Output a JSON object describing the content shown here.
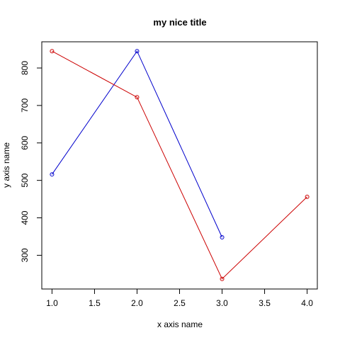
{
  "chart_data": {
    "type": "line",
    "title": "my nice title",
    "xlabel": "x axis name",
    "ylabel": "y axis name",
    "xlim": [
      0.88,
      4.12
    ],
    "ylim": [
      210,
      870
    ],
    "x_ticks": [
      1.0,
      1.5,
      2.0,
      2.5,
      3.0,
      3.5,
      4.0
    ],
    "x_tick_labels": [
      "1.0",
      "1.5",
      "2.0",
      "2.5",
      "3.0",
      "3.5",
      "4.0"
    ],
    "y_ticks": [
      300,
      400,
      500,
      600,
      700,
      800
    ],
    "y_tick_labels": [
      "300",
      "400",
      "500",
      "600",
      "700",
      "800"
    ],
    "grid": false,
    "series": [
      {
        "color": "#0000cc",
        "marker": "open-circle",
        "x": [
          1,
          2,
          3
        ],
        "y": [
          516,
          845,
          348
        ]
      },
      {
        "color": "#cc0000",
        "marker": "open-circle",
        "x": [
          1,
          2,
          3,
          4
        ],
        "y": [
          845,
          722,
          237,
          456
        ]
      }
    ]
  }
}
